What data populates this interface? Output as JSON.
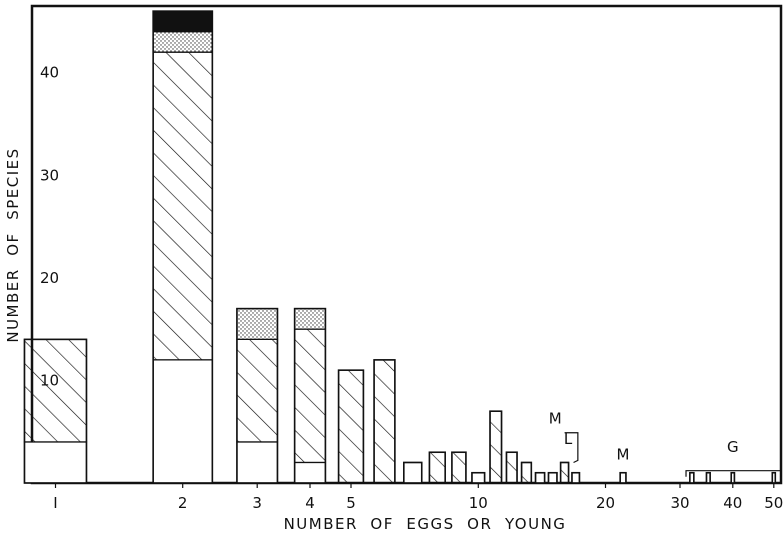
{
  "chart_data": {
    "type": "bar",
    "title": "",
    "xlabel": "NUMBER  OF  EGGS  OR  YOUNG",
    "ylabel": "NUMBER  OF  SPECIES",
    "x_scale": "log",
    "xlim": [
      0.88,
      52
    ],
    "ylim": [
      0,
      46.5
    ],
    "grid": false,
    "x_ticks": [
      {
        "value": 1,
        "label": "I"
      },
      {
        "value": 2,
        "label": "2"
      },
      {
        "value": 3,
        "label": "3"
      },
      {
        "value": 4,
        "label": "4"
      },
      {
        "value": 5,
        "label": "5"
      },
      {
        "value": 10,
        "label": "10"
      },
      {
        "value": 20,
        "label": "20"
      },
      {
        "value": 30,
        "label": "30"
      },
      {
        "value": 40,
        "label": "40"
      },
      {
        "value": 50,
        "label": "50"
      }
    ],
    "y_ticks": [
      {
        "value": 10,
        "label": "10"
      },
      {
        "value": 20,
        "label": "20"
      },
      {
        "value": 30,
        "label": "30"
      },
      {
        "value": 40,
        "label": "40"
      }
    ],
    "series_fills": [
      "plain",
      "hatched",
      "stippled",
      "solid"
    ],
    "bars": [
      {
        "x": 1,
        "values": [
          4,
          10,
          0,
          0
        ]
      },
      {
        "x": 2,
        "values": [
          12,
          30,
          2,
          2
        ]
      },
      {
        "x": 3,
        "values": [
          4,
          10,
          3,
          0
        ]
      },
      {
        "x": 4,
        "values": [
          2,
          13,
          2,
          0
        ]
      },
      {
        "x": 5,
        "values": [
          0,
          11,
          0,
          0
        ]
      },
      {
        "x": 6,
        "values": [
          0,
          12,
          0,
          0
        ]
      },
      {
        "x": 7,
        "values": [
          2,
          0,
          0,
          0
        ]
      },
      {
        "x": 8,
        "values": [
          0,
          3,
          0,
          0
        ]
      },
      {
        "x": 9,
        "values": [
          0,
          3,
          0,
          0
        ]
      },
      {
        "x": 10,
        "values": [
          1,
          0,
          0,
          0
        ]
      },
      {
        "x": 11,
        "values": [
          0,
          7,
          0,
          0
        ]
      },
      {
        "x": 12,
        "values": [
          0,
          3,
          0,
          0
        ]
      },
      {
        "x": 13,
        "values": [
          0,
          2,
          0,
          0
        ]
      },
      {
        "x": 14,
        "values": [
          1,
          0,
          0,
          0
        ]
      },
      {
        "x": 15,
        "values": [
          1,
          0,
          0,
          0
        ]
      },
      {
        "x": 16,
        "values": [
          0,
          2,
          0,
          0
        ]
      },
      {
        "x": 17,
        "values": [
          1,
          0,
          0,
          0
        ]
      },
      {
        "x": 22,
        "values": [
          1,
          0,
          0,
          0
        ]
      },
      {
        "x": 32,
        "values": [
          1,
          0,
          0,
          0
        ]
      },
      {
        "x": 35,
        "values": [
          1,
          0,
          0,
          0
        ]
      },
      {
        "x": 40,
        "values": [
          1,
          0,
          0,
          0
        ]
      },
      {
        "x": 50,
        "values": [
          1,
          0,
          0,
          0
        ]
      }
    ],
    "annotations": [
      {
        "text": "M",
        "x": 15.2,
        "y": 5.8
      },
      {
        "text": "L",
        "x": 16.3,
        "y": 3.8
      },
      {
        "text": "M",
        "x": 22,
        "y": 2.3
      },
      {
        "text": "G",
        "x": 40,
        "y": 3.0
      }
    ]
  }
}
